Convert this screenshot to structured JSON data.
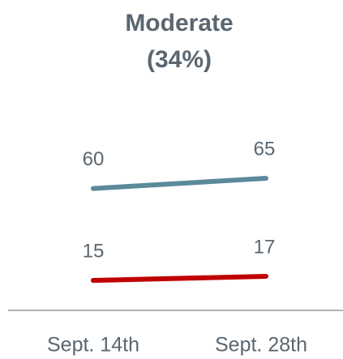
{
  "chart_data": {
    "type": "line",
    "title": "Moderate",
    "subtitle": "(34%)",
    "categories": [
      "Sept. 14th",
      "Sept. 28th"
    ],
    "series": [
      {
        "color": "#5b8a9a",
        "values": [
          60,
          65
        ]
      },
      {
        "color": "#c00000",
        "values": [
          15,
          17
        ]
      }
    ]
  }
}
